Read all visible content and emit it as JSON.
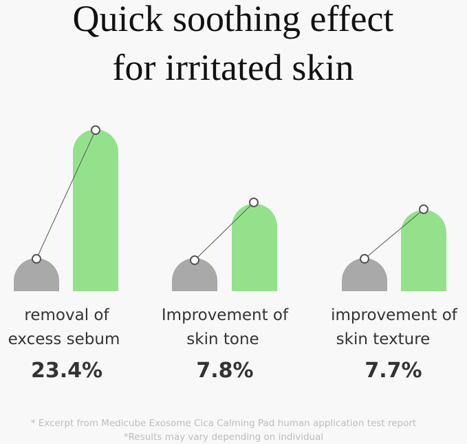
{
  "header": {
    "title_lines": [
      "Quick soothing effect",
      "for irritated skin"
    ]
  },
  "groups": [
    {
      "label_lines": [
        "removal of",
        "excess sebum"
      ],
      "value": "23.4%"
    },
    {
      "label_lines": [
        "Improvement of",
        "skin tone"
      ],
      "value": "7.8%"
    },
    {
      "label_lines": [
        "improvement of",
        "skin texture"
      ],
      "value": "7.7%"
    }
  ],
  "footnotes": [
    "* Excerpt from Medicube Exosome Cica Calming Pad human application test report",
    "*Results may vary depending on individual"
  ]
}
